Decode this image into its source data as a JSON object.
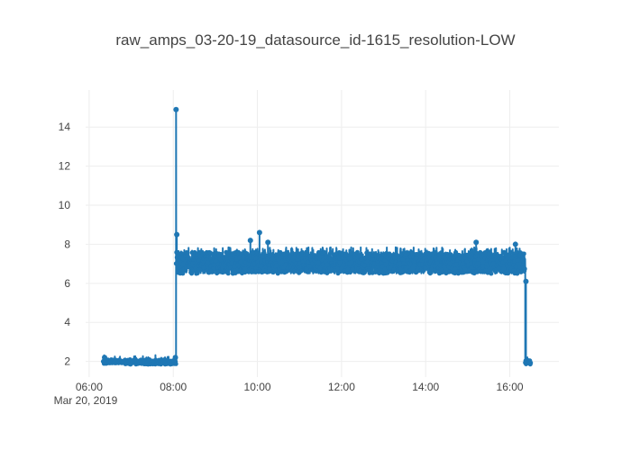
{
  "chart_data": {
    "type": "line",
    "title": "raw_amps_03-20-19_datasource_id-1615_resolution-LOW",
    "xlabel": "",
    "ylabel": "",
    "x_date_label": "Mar 20, 2019",
    "x_ticks": [
      "06:00",
      "08:00",
      "10:00",
      "12:00",
      "14:00",
      "16:00"
    ],
    "y_ticks": [
      2,
      4,
      6,
      8,
      10,
      12,
      14
    ],
    "xlim": [
      "05:55",
      "17:10"
    ],
    "ylim": [
      1.2,
      15.9
    ],
    "grid": true,
    "legend": "none",
    "series_color": "#1f77b4",
    "series": [
      {
        "mode": "lines+markers",
        "segments": [
          {
            "x_start": "06:20",
            "x_end": "08:04",
            "baseline": 2.0,
            "band": [
              1.85,
              2.1
            ],
            "spikes": [
              [
                "06:22",
                2.2
              ],
              [
                "08:03",
                2.2
              ]
            ]
          },
          {
            "x_start": "08:04",
            "x_end": "16:22",
            "baseline": 6.9,
            "band": [
              6.5,
              7.6
            ],
            "spikes": [
              [
                "08:04",
                14.9
              ],
              [
                "08:05",
                8.5
              ],
              [
                "09:50",
                8.2
              ],
              [
                "10:03",
                8.6
              ],
              [
                "10:15",
                8.1
              ],
              [
                "15:12",
                8.1
              ],
              [
                "16:08",
                8.0
              ]
            ]
          },
          {
            "x_start": "16:22",
            "x_end": "16:30",
            "baseline": 1.95,
            "band": [
              1.85,
              2.05
            ],
            "spikes": [
              [
                "16:23",
                6.1
              ]
            ]
          }
        ]
      }
    ]
  }
}
